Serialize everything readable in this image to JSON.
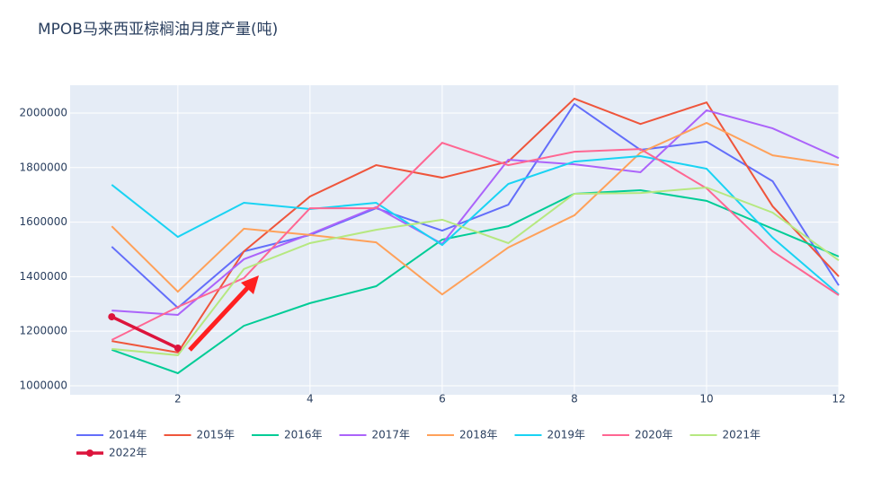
{
  "chart_data": {
    "type": "line",
    "title": "MPOB马来西亚棕榈油月度产量(吨)",
    "x": [
      1,
      2,
      3,
      4,
      5,
      6,
      7,
      8,
      9,
      10,
      11,
      12
    ],
    "xlim": [
      0.37,
      12
    ],
    "xticks": [
      2,
      4,
      6,
      8,
      10,
      12
    ],
    "ylim": [
      967000,
      2102000
    ],
    "yticks": [
      1000000,
      1200000,
      1400000,
      1600000,
      1800000,
      2000000
    ],
    "grid": true,
    "series": [
      {
        "name": "2014年",
        "color": "#636efa",
        "values": [
          1510000,
          1286000,
          1493000,
          1553000,
          1651000,
          1569000,
          1664000,
          2033000,
          1865000,
          1895000,
          1750000,
          1368000
        ]
      },
      {
        "name": "2015年",
        "color": "#EF553B",
        "values": [
          1164000,
          1122000,
          1493000,
          1694000,
          1809000,
          1763000,
          1822000,
          2053000,
          1960000,
          2039000,
          1658000,
          1401000
        ]
      },
      {
        "name": "2016年",
        "color": "#00cc96",
        "values": [
          1132000,
          1046000,
          1220000,
          1303000,
          1365000,
          1536000,
          1585000,
          1704000,
          1717000,
          1678000,
          1576000,
          1474000
        ]
      },
      {
        "name": "2017年",
        "color": "#ab63fa",
        "values": [
          1276000,
          1260000,
          1464000,
          1556000,
          1655000,
          1520000,
          1829000,
          1812000,
          1783000,
          2010000,
          1944000,
          1835000
        ]
      },
      {
        "name": "2018年",
        "color": "#FFA15A",
        "values": [
          1585000,
          1345000,
          1576000,
          1553000,
          1526000,
          1335000,
          1507000,
          1625000,
          1855000,
          1964000,
          1845000,
          1809000
        ]
      },
      {
        "name": "2019年",
        "color": "#19d3f3",
        "values": [
          1737000,
          1546000,
          1671000,
          1648000,
          1671000,
          1516000,
          1740000,
          1822000,
          1842000,
          1796000,
          1543000,
          1335000
        ]
      },
      {
        "name": "2020年",
        "color": "#FF6692",
        "values": [
          1168000,
          1289000,
          1395000,
          1651000,
          1651000,
          1891000,
          1809000,
          1858000,
          1868000,
          1724000,
          1493000,
          1332000
        ]
      },
      {
        "name": "2021年",
        "color": "#B6E880",
        "values": [
          1135000,
          1112000,
          1428000,
          1523000,
          1572000,
          1609000,
          1523000,
          1704000,
          1707000,
          1727000,
          1635000,
          1460000
        ]
      },
      {
        "name": "2022年",
        "color": "#DC143C",
        "markers": true,
        "values": [
          1253000,
          1138000,
          null,
          null,
          null,
          null,
          null,
          null,
          null,
          null,
          null,
          null
        ]
      }
    ]
  }
}
